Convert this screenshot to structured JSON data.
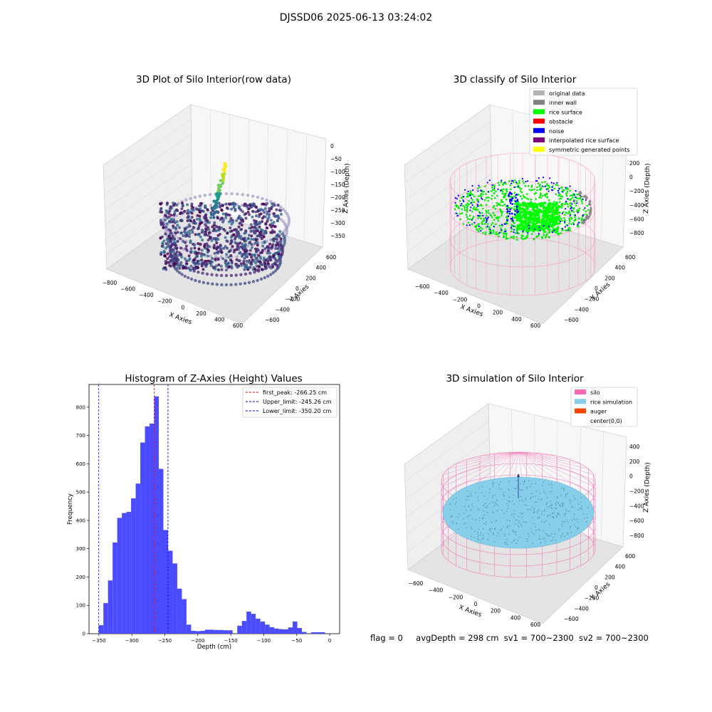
{
  "figure": {
    "suptitle": "DJSSD06 2025-06-13 03:24:02",
    "bottom_status": {
      "flag": "flag = 0",
      "avg_depth": "avgDepth = 298 cm",
      "sv1": "sv1 = 700~2300",
      "sv2": "sv2 = 700~2300"
    }
  },
  "panel1": {
    "title": "3D Plot of Silo Interior(row data)",
    "xlabel": "X Axies",
    "ylabel": "Y Axies",
    "zlabel": "Z Axies (Depth)",
    "xticks": [
      "−800",
      "−600",
      "−400",
      "−200",
      "0",
      "200",
      "400",
      "600"
    ],
    "yticks": [
      "−600",
      "−400",
      "−200",
      "0",
      "200",
      "400",
      "600"
    ],
    "zticks": [
      "0",
      "−50",
      "−100",
      "−150",
      "−200",
      "−250",
      "−300",
      "−350"
    ],
    "colormap": "viridis"
  },
  "panel2": {
    "title": "3D classify of Silo Interior",
    "xlabel": "X Axies",
    "ylabel": "Y Axies",
    "zlabel": "Z Axies (Depth)",
    "xticks": [
      "−600",
      "−400",
      "−200",
      "0",
      "200",
      "400",
      "600"
    ],
    "yticks": [
      "−600",
      "−400",
      "−200",
      "0",
      "200",
      "400",
      "600"
    ],
    "zticks": [
      "200",
      "0",
      "−200",
      "−400",
      "−600",
      "−800"
    ],
    "legend": [
      {
        "label": "original data",
        "color": "#b3b3b3"
      },
      {
        "label": "inner wall",
        "color": "#808080"
      },
      {
        "label": "rice surface",
        "color": "#00ff00"
      },
      {
        "label": "obstacle",
        "color": "#ff0000"
      },
      {
        "label": "noise",
        "color": "#0000ff"
      },
      {
        "label": "interpolated rice surface",
        "color": "#800080"
      },
      {
        "label": "symmetric generated points",
        "color": "#ffff00"
      }
    ]
  },
  "panel3": {
    "title": "Histogram of Z-Axies (Height) Values",
    "xlabel": "Depth (cm)",
    "ylabel": "Frequency",
    "legend": [
      {
        "label": "first_peak: -266.25 cm",
        "color": "#ff0000"
      },
      {
        "label": "Upper_limit: -245.26 cm",
        "color": "#0000ff"
      },
      {
        "label": "Lower_limit: -350.20 cm",
        "color": "#0000ff"
      }
    ]
  },
  "panel4": {
    "title": "3D simulation of Silo Interior",
    "xlabel": "X Axies",
    "ylabel": "Y Axies",
    "zlabel": "Z Axies (Depth)",
    "xticks": [
      "−600",
      "−400",
      "−200",
      "0",
      "200",
      "400",
      "600"
    ],
    "yticks": [
      "−600",
      "−400",
      "−200",
      "0",
      "200",
      "400",
      "600"
    ],
    "zticks": [
      "400",
      "200",
      "0",
      "−200",
      "−400",
      "−600",
      "−800"
    ],
    "legend": [
      {
        "label": "silo",
        "color": "#ff69b4"
      },
      {
        "label": "rice simulation",
        "color": "#87ceeb"
      },
      {
        "label": "auger",
        "color": "#ff4500"
      },
      {
        "label": "center(0,0)",
        "color": ""
      }
    ]
  },
  "chart_data": [
    {
      "type": "scatter",
      "title": "3D Plot of Silo Interior(row data)",
      "xlabel": "X Axies",
      "ylabel": "Y Axies",
      "zlabel": "Z Axies (Depth)",
      "xlim": [
        -800,
        600
      ],
      "ylim": [
        -600,
        600
      ],
      "zlim": [
        -350,
        0
      ]
    },
    {
      "type": "scatter",
      "title": "3D classify of Silo Interior",
      "xlabel": "X Axies",
      "ylabel": "Y Axies",
      "zlabel": "Z Axies (Depth)",
      "xlim": [
        -600,
        600
      ],
      "ylim": [
        -600,
        600
      ],
      "zlim": [
        -800,
        200
      ]
    },
    {
      "type": "bar",
      "title": "Histogram of Z-Axies (Height) Values",
      "xlabel": "Depth (cm)",
      "ylabel": "Frequency",
      "xlim": [
        -365,
        15
      ],
      "ylim": [
        0,
        880
      ],
      "xticks": [
        -350,
        -300,
        -250,
        -200,
        -150,
        -100,
        -50,
        0
      ],
      "yticks": [
        0,
        100,
        200,
        300,
        400,
        500,
        600,
        700,
        800
      ],
      "bin_start": -350.2,
      "bin_width": 7.0,
      "values": [
        30,
        108,
        188,
        322,
        409,
        426,
        430,
        478,
        530,
        675,
        732,
        742,
        838,
        582,
        366,
        293,
        248,
        159,
        122,
        32,
        10,
        9,
        10,
        14,
        14,
        13,
        13,
        12,
        12,
        0,
        28,
        45,
        78,
        70,
        53,
        43,
        32,
        23,
        18,
        16,
        15,
        22,
        43,
        20,
        6,
        0,
        5,
        5,
        5
      ],
      "vlines": [
        {
          "x": -266.25,
          "label": "first_peak: -266.25 cm",
          "color": "#ff0000"
        },
        {
          "x": -245.26,
          "label": "Upper_limit: -245.26 cm",
          "color": "#0000ff"
        },
        {
          "x": -350.2,
          "label": "Lower_limit: -350.20 cm",
          "color": "#0000ff"
        }
      ],
      "bar_color": "#4b4bff",
      "legend_position": "upper right"
    },
    {
      "type": "scatter",
      "title": "3D simulation of Silo Interior",
      "xlabel": "X Axies",
      "ylabel": "Y Axies",
      "zlabel": "Z Axies (Depth)",
      "xlim": [
        -600,
        600
      ],
      "ylim": [
        -600,
        600
      ],
      "zlim": [
        -800,
        400
      ]
    }
  ]
}
